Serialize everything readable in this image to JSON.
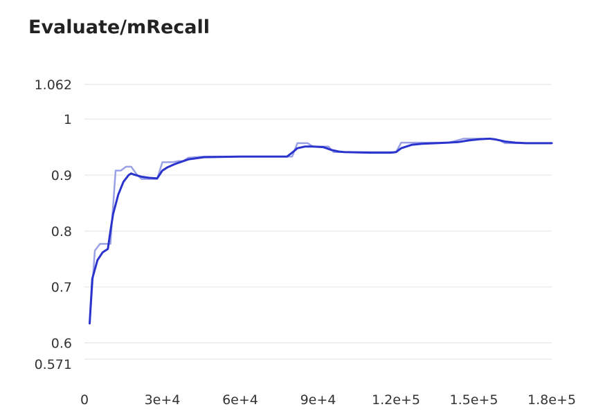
{
  "chart_data": {
    "type": "line",
    "title": "Evaluate/mRecall",
    "xlabel": "",
    "ylabel": "",
    "xlim": [
      0,
      180000
    ],
    "ylim": [
      0.571,
      1.062
    ],
    "grid": true,
    "legend": "none",
    "x_ticks": [
      {
        "value": 0,
        "label": "0"
      },
      {
        "value": 30000,
        "label": "3e+4"
      },
      {
        "value": 60000,
        "label": "6e+4"
      },
      {
        "value": 90000,
        "label": "9e+4"
      },
      {
        "value": 120000,
        "label": "1.2e+5"
      },
      {
        "value": 150000,
        "label": "1.5e+5"
      },
      {
        "value": 180000,
        "label": "1.8e+5"
      }
    ],
    "y_ticks": [
      {
        "value": 1.062,
        "label": "1.062"
      },
      {
        "value": 1.0,
        "label": "1"
      },
      {
        "value": 0.9,
        "label": "0.9"
      },
      {
        "value": 0.8,
        "label": "0.8"
      },
      {
        "value": 0.7,
        "label": "0.7"
      },
      {
        "value": 0.6,
        "label": "0.6"
      },
      {
        "value": 0.571,
        "label": "0.571"
      }
    ],
    "series": [
      {
        "role": "raw",
        "color": "#9aa0e6",
        "x": [
          2000,
          4000,
          6000,
          10000,
          12000,
          14000,
          16000,
          18000,
          20000,
          22000,
          28000,
          30000,
          34000,
          36000,
          38000,
          40000,
          46000,
          80000,
          82000,
          86000,
          88000,
          94000,
          96000,
          100000,
          120000,
          122000,
          130000,
          140000,
          142000,
          146000,
          150000,
          156000,
          160000,
          162000,
          164000,
          166000,
          180000
        ],
        "y": [
          0.635,
          0.765,
          0.777,
          0.777,
          0.908,
          0.908,
          0.915,
          0.915,
          0.902,
          0.893,
          0.893,
          0.923,
          0.923,
          0.925,
          0.925,
          0.931,
          0.933,
          0.933,
          0.957,
          0.957,
          0.951,
          0.951,
          0.941,
          0.941,
          0.941,
          0.958,
          0.958,
          0.958,
          0.96,
          0.965,
          0.965,
          0.965,
          0.962,
          0.957,
          0.957,
          0.957,
          0.957
        ]
      },
      {
        "role": "smoothed",
        "color": "#2a33cc",
        "x": [
          2000,
          3000,
          5000,
          7000,
          9000,
          10000,
          11000,
          13000,
          15000,
          17000,
          18000,
          19000,
          22000,
          25000,
          28000,
          30000,
          32000,
          35000,
          40000,
          46000,
          60000,
          78000,
          80000,
          82000,
          85000,
          88000,
          92000,
          95000,
          98000,
          100000,
          110000,
          118000,
          120000,
          122000,
          126000,
          130000,
          140000,
          144000,
          148000,
          152000,
          156000,
          158000,
          162000,
          166000,
          170000,
          180000
        ],
        "y": [
          0.635,
          0.715,
          0.748,
          0.762,
          0.768,
          0.8,
          0.83,
          0.865,
          0.888,
          0.9,
          0.903,
          0.901,
          0.897,
          0.895,
          0.894,
          0.908,
          0.914,
          0.92,
          0.928,
          0.932,
          0.933,
          0.933,
          0.94,
          0.948,
          0.951,
          0.951,
          0.95,
          0.945,
          0.942,
          0.941,
          0.94,
          0.94,
          0.941,
          0.948,
          0.954,
          0.956,
          0.958,
          0.959,
          0.962,
          0.964,
          0.965,
          0.964,
          0.96,
          0.958,
          0.957,
          0.957
        ]
      }
    ]
  }
}
